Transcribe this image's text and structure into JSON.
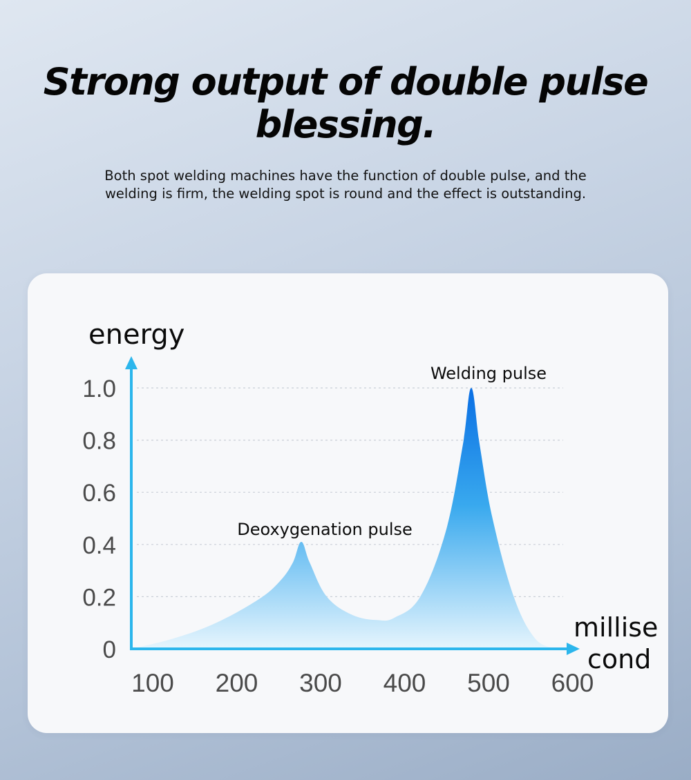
{
  "headline": "Strong output of double pulse blessing.",
  "description": "Both spot welding machines have the function of double pulse, and the welding is firm, the welding spot is round and the effect is outstanding.",
  "colors": {
    "axis": "#2cb6ec",
    "peak": "#0a72e6",
    "fill_light": "#e8f6fd",
    "grid": "#c9ced6"
  },
  "chart_data": {
    "type": "area",
    "ylabel": "energy",
    "xlabel": "millisecond",
    "xlabel_lines": [
      "millise",
      "cond"
    ],
    "x_ticks": [
      "100",
      "200",
      "300",
      "400",
      "500",
      "600"
    ],
    "y_ticks": [
      "0",
      "0.2",
      "0.4",
      "0.6",
      "0.8",
      "1.0"
    ],
    "xlim": [
      100,
      600
    ],
    "ylim": [
      0,
      1.0
    ],
    "grid": true,
    "series": [
      {
        "x": [
          100,
          150,
          200,
          250,
          275,
          290,
          300,
          310,
          330,
          360,
          390,
          410,
          440,
          470,
          490,
          500,
          510,
          525,
          550,
          575,
          600
        ],
        "y": [
          0.0,
          0.04,
          0.1,
          0.19,
          0.26,
          0.33,
          0.41,
          0.33,
          0.2,
          0.13,
          0.11,
          0.12,
          0.2,
          0.45,
          0.78,
          1.0,
          0.78,
          0.5,
          0.2,
          0.04,
          0.0
        ]
      }
    ],
    "annotations": [
      {
        "text": "Deoxygenation pulse",
        "x": 300,
        "y": 0.41
      },
      {
        "text": "Welding pulse",
        "x": 500,
        "y": 1.0
      }
    ]
  }
}
